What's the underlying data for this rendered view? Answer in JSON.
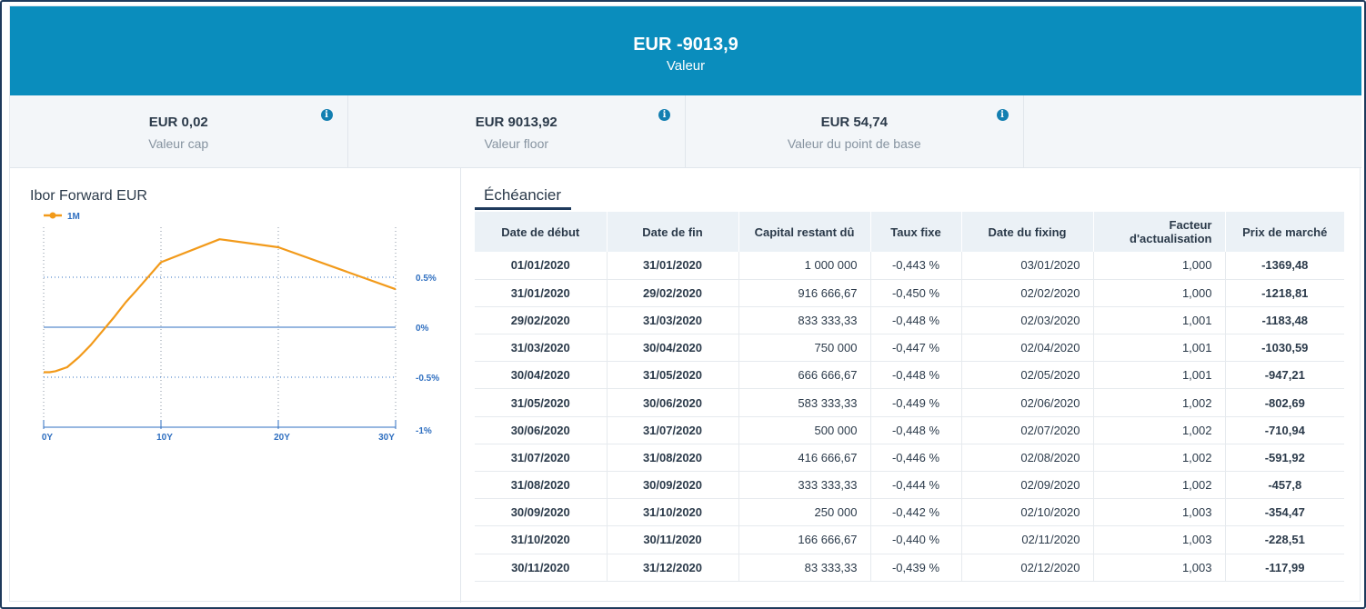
{
  "header": {
    "amount": "EUR -9013,9",
    "label": "Valeur"
  },
  "kpis": [
    {
      "value": "EUR 0,02",
      "label": "Valeur cap",
      "icon": "info-icon"
    },
    {
      "value": "EUR 9013,92",
      "label": "Valeur floor",
      "icon": "info-icon"
    },
    {
      "value": "EUR 54,74",
      "label": "Valeur du point de base",
      "icon": "info-icon"
    }
  ],
  "chart": {
    "title": "Ibor Forward EUR",
    "legend": "1M",
    "series_color": "#f29a1a",
    "accent": "#2f6fc0"
  },
  "chart_data": {
    "type": "line",
    "title": "Ibor Forward EUR",
    "xlabel": "",
    "ylabel": "",
    "x_ticks": [
      "0Y",
      "10Y",
      "20Y",
      "30Y"
    ],
    "y_ticks": [
      "0.5%",
      "0%",
      "-0.5%",
      "-1%"
    ],
    "xlim": [
      0,
      30
    ],
    "ylim": [
      -1,
      1
    ],
    "legend_position": "top-left",
    "grid": true,
    "series": [
      {
        "name": "1M",
        "x": [
          0,
          0.5,
          1,
          2,
          3,
          4,
          5,
          6,
          7,
          8,
          10,
          15,
          20,
          30
        ],
        "y": [
          -0.45,
          -0.45,
          -0.44,
          -0.4,
          -0.3,
          -0.18,
          -0.04,
          0.1,
          0.25,
          0.38,
          0.65,
          0.88,
          0.8,
          0.38
        ]
      }
    ]
  },
  "schedule": {
    "tab": "Échéancier",
    "columns": [
      "Date de début",
      "Date de fin",
      "Capital restant dû",
      "Taux fixe",
      "Date du fixing",
      "Facteur d'actualisation",
      "Prix de marché"
    ],
    "rows": [
      [
        "01/01/2020",
        "31/01/2020",
        "1 000 000",
        "-0,443 %",
        "03/01/2020",
        "1,000",
        "-1369,48"
      ],
      [
        "31/01/2020",
        "29/02/2020",
        "916 666,67",
        "-0,450 %",
        "02/02/2020",
        "1,000",
        "-1218,81"
      ],
      [
        "29/02/2020",
        "31/03/2020",
        "833 333,33",
        "-0,448 %",
        "02/03/2020",
        "1,001",
        "-1183,48"
      ],
      [
        "31/03/2020",
        "30/04/2020",
        "750 000",
        "-0,447 %",
        "02/04/2020",
        "1,001",
        "-1030,59"
      ],
      [
        "30/04/2020",
        "31/05/2020",
        "666 666,67",
        "-0,448 %",
        "02/05/2020",
        "1,001",
        "-947,21"
      ],
      [
        "31/05/2020",
        "30/06/2020",
        "583 333,33",
        "-0,449 %",
        "02/06/2020",
        "1,002",
        "-802,69"
      ],
      [
        "30/06/2020",
        "31/07/2020",
        "500 000",
        "-0,448 %",
        "02/07/2020",
        "1,002",
        "-710,94"
      ],
      [
        "31/07/2020",
        "31/08/2020",
        "416 666,67",
        "-0,446 %",
        "02/08/2020",
        "1,002",
        "-591,92"
      ],
      [
        "31/08/2020",
        "30/09/2020",
        "333 333,33",
        "-0,444 %",
        "02/09/2020",
        "1,002",
        "-457,8"
      ],
      [
        "30/09/2020",
        "31/10/2020",
        "250 000",
        "-0,442 %",
        "02/10/2020",
        "1,003",
        "-354,47"
      ],
      [
        "31/10/2020",
        "30/11/2020",
        "166 666,67",
        "-0,440 %",
        "02/11/2020",
        "1,003",
        "-228,51"
      ],
      [
        "30/11/2020",
        "31/12/2020",
        "83 333,33",
        "-0,439 %",
        "02/12/2020",
        "1,003",
        "-117,99"
      ]
    ]
  }
}
